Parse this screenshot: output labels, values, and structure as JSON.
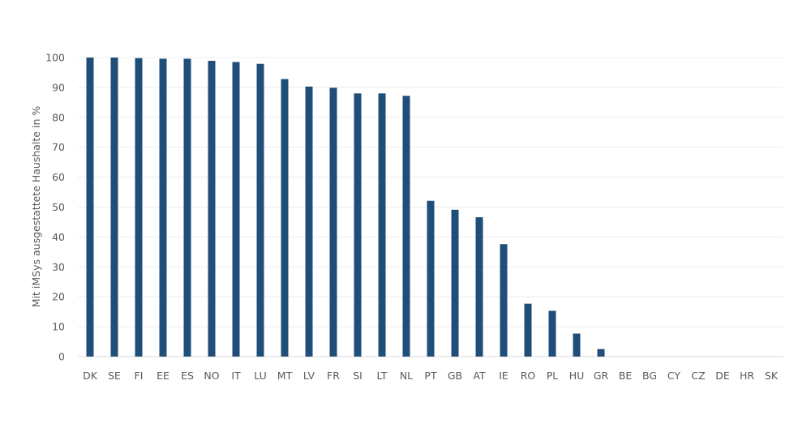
{
  "chart_data": {
    "type": "bar",
    "title": "",
    "xlabel": "",
    "ylabel": "Mit iMSys ausgestattete Haushalte in %",
    "ylim": [
      0,
      100
    ],
    "yticks": [
      0,
      10,
      20,
      30,
      40,
      50,
      60,
      70,
      80,
      90,
      100
    ],
    "grid": true,
    "bar_color": "#1f4e79",
    "categories": [
      "DK",
      "SE",
      "FI",
      "EE",
      "ES",
      "NO",
      "IT",
      "LU",
      "MT",
      "LV",
      "FR",
      "SI",
      "LT",
      "NL",
      "PT",
      "GB",
      "AT",
      "IE",
      "RO",
      "PL",
      "HU",
      "GR",
      "BE",
      "BG",
      "CY",
      "CZ",
      "DE",
      "HR",
      "SK"
    ],
    "values": [
      100,
      100,
      99.8,
      99.6,
      99.6,
      98.9,
      98.5,
      97.9,
      92.8,
      90.3,
      89.9,
      88,
      88,
      87.2,
      52.1,
      49.1,
      46.6,
      37.6,
      17.7,
      15.3,
      7.7,
      2.5,
      0,
      0,
      0,
      0,
      0,
      0,
      0
    ]
  }
}
